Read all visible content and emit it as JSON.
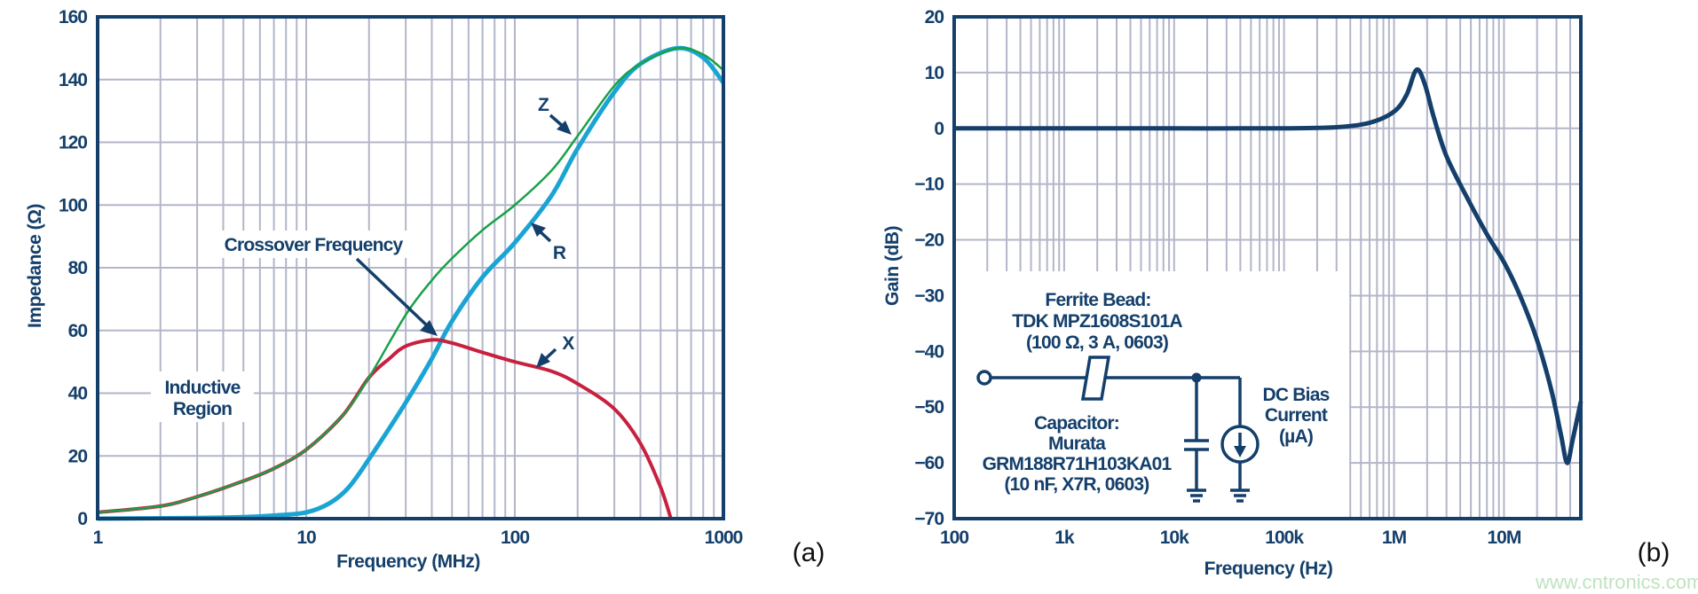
{
  "chart_data": [
    {
      "type": "line",
      "panel_label": "(a)",
      "xlabel": "Frequency (MHz)",
      "ylabel": "Impedance (Ω)",
      "xscale": "log",
      "xlim": [
        1,
        1000
      ],
      "ylim": [
        0,
        160
      ],
      "grid": true,
      "xticks": [
        "1",
        "10",
        "100",
        "1000"
      ],
      "yticks": [
        "0",
        "20",
        "40",
        "60",
        "80",
        "100",
        "120",
        "140",
        "160"
      ],
      "series": [
        {
          "name": "Z",
          "color": "#1aa049",
          "x": [
            1,
            2,
            3,
            5,
            7,
            10,
            15,
            20,
            30,
            40,
            50,
            70,
            100,
            150,
            200,
            300,
            400,
            600,
            800,
            1000
          ],
          "y": [
            2,
            4,
            7,
            12,
            16,
            22,
            33,
            45,
            65,
            76,
            83,
            92,
            100,
            111,
            122,
            138,
            145,
            150,
            148,
            143
          ]
        },
        {
          "name": "R",
          "color": "#1aa4d4",
          "x": [
            1,
            3,
            5,
            7,
            10,
            13,
            16,
            20,
            30,
            40,
            50,
            70,
            100,
            150,
            200,
            300,
            400,
            600,
            800,
            1000
          ],
          "y": [
            0,
            0.2,
            0.5,
            1,
            2,
            5,
            10,
            19,
            37,
            51,
            63,
            77,
            88,
            103,
            118,
            136,
            145,
            150,
            147,
            139
          ]
        },
        {
          "name": "X",
          "color": "#c8203f",
          "x": [
            1,
            2,
            3,
            5,
            7,
            10,
            15,
            20,
            25,
            30,
            40,
            50,
            70,
            100,
            150,
            200,
            300,
            400,
            500,
            560
          ],
          "y": [
            2,
            4,
            7,
            12,
            16,
            22,
            33,
            45,
            51,
            55,
            57,
            56,
            53,
            50,
            47,
            43,
            35,
            24,
            10,
            0
          ]
        }
      ],
      "annotations": {
        "crossover": "Crossover Frequency",
        "inductive_line1": "Inductive",
        "inductive_line2": "Region",
        "z_label": "Z",
        "r_label": "R",
        "x_label": "X"
      }
    },
    {
      "type": "line",
      "panel_label": "(b)",
      "xlabel": "Frequency (Hz)",
      "ylabel": "Gain (dB)",
      "xscale": "log",
      "xlim": [
        100,
        50000000
      ],
      "ylim": [
        -70,
        20
      ],
      "grid": true,
      "xticks": [
        "100",
        "1k",
        "10k",
        "100k",
        "1M",
        "10M"
      ],
      "yticks": [
        "20",
        "10",
        "0",
        "−10",
        "−20",
        "−30",
        "−40",
        "−50",
        "−60",
        "−70"
      ],
      "series": [
        {
          "color": "#143f6b",
          "x": [
            100,
            1000,
            10000,
            100000,
            300000,
            600000,
            1000000,
            1300000,
            1600000,
            1900000,
            2300000,
            3000000,
            4500000,
            7000000,
            10000000,
            14000000,
            20000000,
            27000000,
            33000000,
            37500000,
            42000000,
            50000000
          ],
          "y": [
            0,
            0,
            0,
            0,
            0.2,
            1,
            3,
            6,
            10.5,
            8,
            2,
            -5,
            -12,
            -19,
            -24,
            -30,
            -38,
            -47,
            -55,
            -60,
            -56,
            -49
          ]
        }
      ],
      "circuit": {
        "bead_title": "Ferrite Bead:",
        "bead_part": "TDK MPZ1608S101A",
        "bead_spec": "(100 Ω, 3 A, 0603)",
        "cap_title": "Capacitor:",
        "cap_maker": "Murata",
        "cap_part": "GRM188R71H103KA01",
        "cap_spec": "(10 nF, X7R, 0603)",
        "bias_line1": "DC Bias",
        "bias_line2": "Current",
        "bias_line3": "(µA)"
      }
    }
  ],
  "watermark": "www.cntronics.com"
}
